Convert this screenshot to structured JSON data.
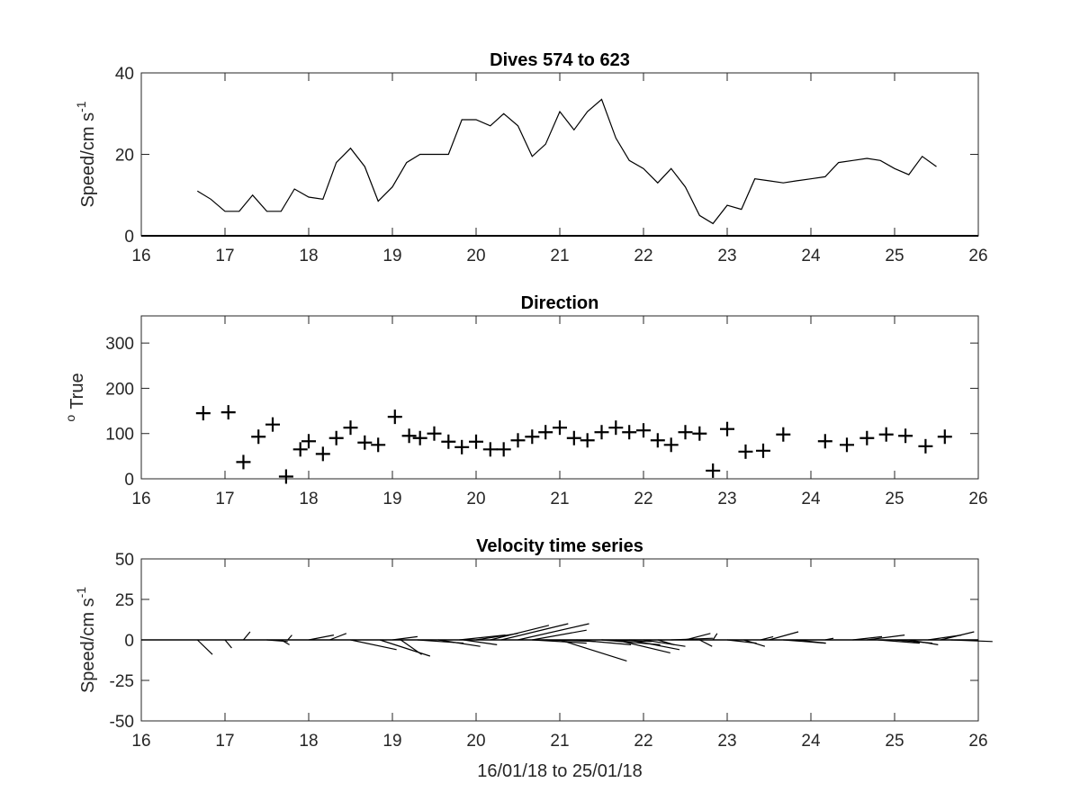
{
  "chart_data": [
    {
      "type": "line",
      "title": "Dives 574 to 623",
      "ylabel": "Speed/cm s",
      "ylabel_superscript": "-1",
      "xlabel": "",
      "xlim": [
        16,
        26
      ],
      "ylim": [
        0,
        40
      ],
      "xticks": [
        "16",
        "17",
        "18",
        "19",
        "20",
        "21",
        "22",
        "23",
        "24",
        "25",
        "26"
      ],
      "yticks": [
        "0",
        "20",
        "40"
      ],
      "grid": false,
      "color": "#000000",
      "x": [
        16.67,
        16.83,
        17.0,
        17.17,
        17.33,
        17.5,
        17.67,
        17.83,
        18.0,
        18.17,
        18.33,
        18.5,
        18.67,
        18.83,
        19.0,
        19.17,
        19.33,
        19.5,
        19.67,
        19.83,
        20.0,
        20.17,
        20.33,
        20.5,
        20.67,
        20.83,
        21.0,
        21.17,
        21.33,
        21.5,
        21.67,
        21.83,
        22.0,
        22.17,
        22.33,
        22.5,
        22.67,
        22.83,
        23.0,
        23.17,
        23.33,
        23.5,
        23.67,
        23.83,
        24.0,
        24.17,
        24.33,
        24.5,
        24.67,
        24.83,
        25.0,
        25.17,
        25.33,
        25.5,
        25.67,
        25.83
      ],
      "values": [
        11,
        9,
        6,
        6,
        10,
        6,
        6,
        11.5,
        9.5,
        9,
        18,
        21.5,
        17,
        8.5,
        12,
        18,
        20,
        20,
        20,
        28.5,
        28.5,
        27,
        30,
        27,
        19.5,
        22.5,
        30.5,
        26,
        30.5,
        33.5,
        24,
        18.5,
        16.5,
        13,
        16.5,
        12,
        5,
        3,
        7.5,
        6.5,
        14,
        13.5,
        13,
        13.5,
        14,
        14.5,
        18,
        18.5,
        19,
        18.5,
        16.5,
        15,
        19.5,
        17,
        null,
        null
      ]
    },
    {
      "type": "scatter",
      "title": "Direction",
      "ylabel": "True",
      "ylabel_prefix": "o",
      "xlabel": "",
      "xlim": [
        16,
        26
      ],
      "ylim": [
        0,
        360
      ],
      "xticks": [
        "16",
        "17",
        "18",
        "19",
        "20",
        "21",
        "22",
        "23",
        "24",
        "25",
        "26"
      ],
      "yticks": [
        "0",
        "100",
        "200",
        "300"
      ],
      "grid": false,
      "marker": "+",
      "color": "#000000",
      "x": [
        16.74,
        17.04,
        17.22,
        17.4,
        17.57,
        17.73,
        17.9,
        18.0,
        18.17,
        18.33,
        18.5,
        18.67,
        18.83,
        19.03,
        19.2,
        19.33,
        19.5,
        19.67,
        19.83,
        20.0,
        20.17,
        20.33,
        20.5,
        20.67,
        20.83,
        21.0,
        21.17,
        21.33,
        21.5,
        21.67,
        21.83,
        22.0,
        22.17,
        22.33,
        22.5,
        22.67,
        22.83,
        23.0,
        23.22,
        23.43,
        23.67,
        24.17,
        24.43,
        24.67,
        24.9,
        25.13,
        25.37,
        25.6
      ],
      "values": [
        145,
        147,
        37,
        93,
        120,
        5,
        65,
        83,
        55,
        90,
        113,
        80,
        75,
        137,
        95,
        90,
        100,
        82,
        70,
        82,
        65,
        65,
        85,
        93,
        103,
        113,
        90,
        85,
        103,
        113,
        103,
        107,
        85,
        75,
        103,
        100,
        18,
        110,
        60,
        62,
        98,
        83,
        75,
        90,
        98,
        95,
        72,
        93
      ]
    },
    {
      "type": "line",
      "subtype": "stick-plot",
      "title": "Velocity time series",
      "ylabel": "Speed/cm s",
      "ylabel_superscript": "-1",
      "xlabel": "16/01/18 to 25/01/18",
      "xlim": [
        16,
        26
      ],
      "ylim": [
        -50,
        50
      ],
      "xticks": [
        "16",
        "17",
        "18",
        "19",
        "20",
        "21",
        "22",
        "23",
        "24",
        "25",
        "26"
      ],
      "yticks": [
        "-50",
        "-25",
        "0",
        "25",
        "50"
      ],
      "grid": false,
      "color": "#000000",
      "vectors": [
        {
          "t": 16.67,
          "u": 0.18,
          "v": -9
        },
        {
          "t": 17.0,
          "u": 0.08,
          "v": -5
        },
        {
          "t": 17.22,
          "u": 0.08,
          "v": 5
        },
        {
          "t": 17.5,
          "u": 0.25,
          "v": -1
        },
        {
          "t": 17.67,
          "u": 0.1,
          "v": -3
        },
        {
          "t": 17.75,
          "u": 0.05,
          "v": 3
        },
        {
          "t": 18.0,
          "u": 0.3,
          "v": 3
        },
        {
          "t": 18.25,
          "u": 0.2,
          "v": 4
        },
        {
          "t": 18.5,
          "u": 0.55,
          "v": -6
        },
        {
          "t": 18.85,
          "u": 0.6,
          "v": -10
        },
        {
          "t": 19.0,
          "u": 0.3,
          "v": 2
        },
        {
          "t": 19.1,
          "u": 0.25,
          "v": -9
        },
        {
          "t": 19.3,
          "u": 0.55,
          "v": -2
        },
        {
          "t": 19.55,
          "u": 0.5,
          "v": -4
        },
        {
          "t": 19.8,
          "u": 0.55,
          "v": 3
        },
        {
          "t": 19.85,
          "u": 0.4,
          "v": -3
        },
        {
          "t": 20.0,
          "u": 0.5,
          "v": 4
        },
        {
          "t": 20.17,
          "u": 0.7,
          "v": 9
        },
        {
          "t": 20.3,
          "u": 0.8,
          "v": 10
        },
        {
          "t": 20.5,
          "u": 0.85,
          "v": 10
        },
        {
          "t": 20.67,
          "u": 0.65,
          "v": 6
        },
        {
          "t": 20.67,
          "u": 0.65,
          "v": -2
        },
        {
          "t": 20.83,
          "u": 0.6,
          "v": -1
        },
        {
          "t": 21.0,
          "u": 0.8,
          "v": -13
        },
        {
          "t": 21.2,
          "u": 0.65,
          "v": -3
        },
        {
          "t": 21.5,
          "u": 0.7,
          "v": -3
        },
        {
          "t": 21.5,
          "u": 0.6,
          "v": -1
        },
        {
          "t": 21.67,
          "u": 0.65,
          "v": -8
        },
        {
          "t": 21.83,
          "u": 0.6,
          "v": -6
        },
        {
          "t": 22.0,
          "u": 0.5,
          "v": -4
        },
        {
          "t": 22.17,
          "u": 0.2,
          "v": -3
        },
        {
          "t": 22.33,
          "u": 0.5,
          "v": 1
        },
        {
          "t": 22.5,
          "u": 0.3,
          "v": 4
        },
        {
          "t": 22.67,
          "u": 0.15,
          "v": -4
        },
        {
          "t": 22.83,
          "u": 0.05,
          "v": 4
        },
        {
          "t": 23.0,
          "u": 0.35,
          "v": -2
        },
        {
          "t": 23.2,
          "u": 0.25,
          "v": -4
        },
        {
          "t": 23.4,
          "u": 0.15,
          "v": 2
        },
        {
          "t": 23.5,
          "u": 0.35,
          "v": 5
        },
        {
          "t": 23.67,
          "u": 0.5,
          "v": -2
        },
        {
          "t": 23.83,
          "u": 0.35,
          "v": -2
        },
        {
          "t": 24.17,
          "u": 0.1,
          "v": 1
        },
        {
          "t": 24.5,
          "u": 0.35,
          "v": 2
        },
        {
          "t": 24.67,
          "u": 0.45,
          "v": 3
        },
        {
          "t": 24.8,
          "u": 0.5,
          "v": -2
        },
        {
          "t": 25.0,
          "u": 0.45,
          "v": -2
        },
        {
          "t": 25.17,
          "u": 0.35,
          "v": -3
        },
        {
          "t": 25.4,
          "u": 0.4,
          "v": 3
        },
        {
          "t": 25.55,
          "u": 0.4,
          "v": 5
        },
        {
          "t": 25.67,
          "u": 0.5,
          "v": -1
        }
      ]
    }
  ]
}
